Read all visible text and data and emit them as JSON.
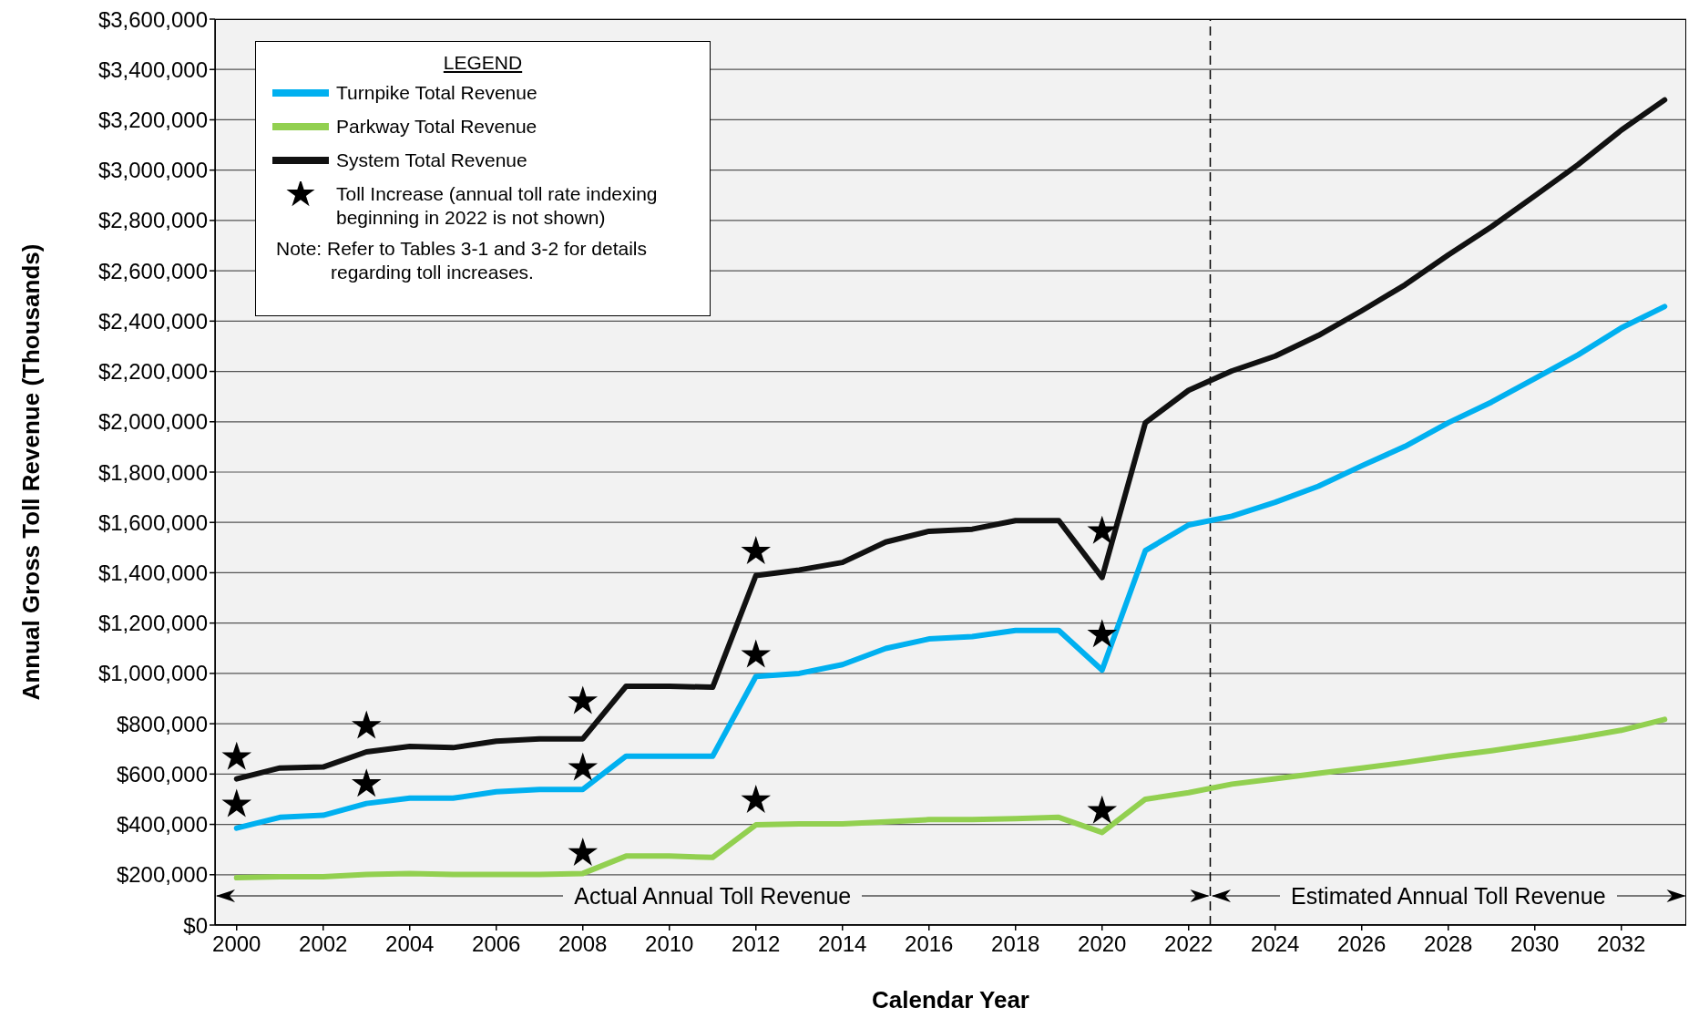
{
  "chart_data": {
    "type": "line",
    "xlabel": "Calendar Year",
    "ylabel": "Annual Gross Toll Revenue (Thousands)",
    "legend_title": "LEGEND",
    "legend": "top left",
    "grid": "y",
    "annotations": [
      "Note: Refer to Tables 3-1 and 3-2 for details regarding toll increases.",
      "Actual Annual Toll Revenue",
      "Estimated Annual Toll Revenue"
    ],
    "x": [
      2000,
      2001,
      2002,
      2003,
      2004,
      2005,
      2006,
      2007,
      2008,
      2009,
      2010,
      2011,
      2012,
      2013,
      2014,
      2015,
      2016,
      2017,
      2018,
      2019,
      2020,
      2021,
      2022,
      2023,
      2024,
      2025,
      2026,
      2027,
      2028,
      2029,
      2030,
      2031,
      2032,
      2033
    ],
    "xlim": [
      1999.5,
      2033.5
    ],
    "xticks": [
      2000,
      2002,
      2004,
      2006,
      2008,
      2010,
      2012,
      2014,
      2016,
      2018,
      2020,
      2022,
      2024,
      2026,
      2028,
      2030,
      2032
    ],
    "ylim": [
      0,
      3600000
    ],
    "yticks": [
      {
        "value": 0,
        "label": "$0"
      },
      {
        "value": 200000,
        "label": "$200,000"
      },
      {
        "value": 400000,
        "label": "$400,000"
      },
      {
        "value": 600000,
        "label": "$600,000"
      },
      {
        "value": 800000,
        "label": "$800,000"
      },
      {
        "value": 1000000,
        "label": "$1,000,000"
      },
      {
        "value": 1200000,
        "label": "$1,200,000"
      },
      {
        "value": 1400000,
        "label": "$1,400,000"
      },
      {
        "value": 1600000,
        "label": "$1,600,000"
      },
      {
        "value": 1800000,
        "label": "$1,800,000"
      },
      {
        "value": 2000000,
        "label": "$2,000,000"
      },
      {
        "value": 2200000,
        "label": "$2,200,000"
      },
      {
        "value": 2400000,
        "label": "$2,400,000"
      },
      {
        "value": 2600000,
        "label": "$2,600,000"
      },
      {
        "value": 2800000,
        "label": "$2,800,000"
      },
      {
        "value": 3000000,
        "label": "$3,000,000"
      },
      {
        "value": 3200000,
        "label": "$3,200,000"
      },
      {
        "value": 3400000,
        "label": "$3,400,000"
      },
      {
        "value": 3600000,
        "label": "$3,600,000"
      }
    ],
    "ref_lines": [
      {
        "axis": "x",
        "value": 2022.5,
        "color": "#000000",
        "line_style": "dashed"
      }
    ],
    "series": [
      {
        "name": "Turnpike Total Revenue",
        "color": "#00b0f0",
        "values": [
          385000,
          428000,
          436000,
          483000,
          504000,
          504000,
          530000,
          539000,
          539000,
          671000,
          671000,
          671000,
          988000,
          1000000,
          1035000,
          1099000,
          1137000,
          1146000,
          1171000,
          1171000,
          1013000,
          1488000,
          1590000,
          1625000,
          1680000,
          1744000,
          1825000,
          1902000,
          1996000,
          2078000,
          2172000,
          2266000,
          2373000,
          2458000
        ]
      },
      {
        "name": "Parkway Total Revenue",
        "color": "#92d050",
        "values": [
          188000,
          192000,
          192000,
          201000,
          205000,
          201000,
          201000,
          201000,
          205000,
          274000,
          274000,
          269000,
          398000,
          402000,
          402000,
          410000,
          419000,
          419000,
          423000,
          428000,
          368000,
          500000,
          526000,
          560000,
          581000,
          603000,
          624000,
          646000,
          671000,
          693000,
          718000,
          744000,
          774000,
          817000
        ]
      },
      {
        "name": "System Total Revenue",
        "color": "#111111",
        "values": [
          581000,
          624000,
          628000,
          688000,
          710000,
          705000,
          731000,
          740000,
          740000,
          949000,
          949000,
          945000,
          1389000,
          1411000,
          1441000,
          1522000,
          1565000,
          1573000,
          1607000,
          1607000,
          1381000,
          1996000,
          2125000,
          2202000,
          2261000,
          2343000,
          2441000,
          2544000,
          2663000,
          2775000,
          2898000,
          3022000,
          3159000,
          3279000
        ]
      },
      {
        "name": "Toll Increase (annual toll rate indexing beginning in 2022 is not shown)",
        "type": "scatter",
        "marker": "star",
        "color": "#000000",
        "x": [
          2000,
          2000,
          2003,
          2003,
          2008,
          2008,
          2008,
          2012,
          2012,
          2012,
          2020,
          2020,
          2020
        ],
        "values": [
          667000,
          479000,
          791000,
          560000,
          889000,
          624000,
          286000,
          1484000,
          1073000,
          496000,
          1565000,
          1154000,
          453000
        ]
      }
    ]
  }
}
